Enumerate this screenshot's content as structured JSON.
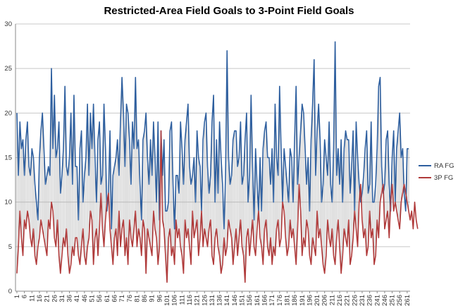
{
  "chart_data": {
    "type": "line",
    "title": "Restricted-Area Field Goals to 3-Point Field Goals",
    "xlabel": "",
    "ylabel": "",
    "ylim": [
      0,
      30
    ],
    "y_ticks": [
      0,
      5,
      10,
      15,
      20,
      25,
      30
    ],
    "x_start": 1,
    "x_tick_step": 5,
    "grid": "horizontal gridlines and vertical high-low lines between series",
    "legend_position": "right",
    "series": [
      {
        "name": "RA FG",
        "color": "#2e5f9f",
        "values": [
          20,
          13,
          19,
          16,
          17,
          13,
          17,
          19,
          14,
          13,
          16,
          15,
          12,
          10,
          8,
          15,
          18,
          20,
          16,
          12,
          13,
          14,
          13,
          25,
          16,
          22,
          15,
          16,
          19,
          11,
          13,
          16,
          23,
          14,
          13,
          15,
          20,
          12,
          22,
          14,
          14,
          8,
          16,
          18,
          10,
          13,
          15,
          21,
          13,
          20,
          16,
          21,
          15,
          10,
          17,
          19,
          12,
          13,
          21,
          16,
          9,
          11,
          18,
          7,
          13,
          14,
          15,
          17,
          13,
          19,
          24,
          20,
          14,
          21,
          20,
          17,
          12,
          19,
          16,
          24,
          16,
          17,
          12,
          8,
          17,
          18,
          20,
          15,
          12,
          17,
          13,
          19,
          15,
          10,
          19,
          8,
          18,
          13,
          17,
          9,
          9,
          10,
          18,
          19,
          12,
          7,
          13,
          13,
          11,
          19,
          16,
          12,
          17,
          19,
          21,
          14,
          12,
          13,
          15,
          10,
          18,
          15,
          14,
          9,
          17,
          19,
          20,
          14,
          11,
          13,
          19,
          22,
          10,
          17,
          11,
          19,
          15,
          12,
          7,
          13,
          27,
          15,
          12,
          13,
          17,
          18,
          18,
          14,
          15,
          19,
          12,
          13,
          17,
          20,
          10,
          13,
          22,
          14,
          8,
          16,
          12,
          9,
          15,
          9,
          16,
          18,
          19,
          15,
          15,
          12,
          16,
          10,
          21,
          15,
          13,
          23,
          16,
          10,
          16,
          14,
          12,
          10,
          16,
          15,
          10,
          17,
          23,
          12,
          15,
          18,
          21,
          20,
          16,
          12,
          15,
          9,
          17,
          21,
          26,
          13,
          18,
          21,
          17,
          10,
          12,
          17,
          15,
          13,
          19,
          12,
          10,
          16,
          28,
          13,
          16,
          12,
          17,
          10,
          16,
          18,
          17,
          17,
          11,
          14,
          18,
          9,
          19,
          15,
          12,
          10,
          11,
          13,
          16,
          18,
          11,
          12,
          19,
          10,
          10,
          12,
          16,
          23,
          24,
          14,
          11,
          12,
          17,
          18,
          12,
          9,
          15,
          18,
          10,
          16,
          18,
          20,
          15,
          16,
          11,
          9,
          16,
          16
        ]
      },
      {
        "name": "3P FG",
        "color": "#b03a3a",
        "values": [
          2,
          5,
          9,
          6,
          4,
          8,
          7,
          9,
          8,
          6,
          5,
          7,
          4,
          3,
          5,
          6,
          8,
          7,
          6,
          5,
          4,
          8,
          7,
          10,
          9,
          6,
          5,
          8,
          4,
          2,
          4,
          6,
          5,
          7,
          4,
          2,
          3,
          5,
          4,
          6,
          6,
          4,
          3,
          5,
          7,
          4,
          3,
          5,
          6,
          9,
          8,
          3,
          6,
          7,
          4,
          7,
          11,
          7,
          5,
          8,
          10,
          11,
          7,
          5,
          3,
          6,
          7,
          4,
          9,
          5,
          7,
          8,
          4,
          6,
          3,
          8,
          6,
          5,
          7,
          9,
          5,
          7,
          6,
          4,
          8,
          7,
          2,
          7,
          6,
          5,
          4,
          9,
          7,
          6,
          3,
          5,
          18,
          8,
          7,
          4,
          1,
          6,
          7,
          4,
          5,
          3,
          8,
          6,
          7,
          5,
          4,
          2,
          8,
          6,
          7,
          5,
          3,
          9,
          6,
          7,
          8,
          4,
          6,
          9,
          5,
          7,
          6,
          5,
          7,
          8,
          4,
          3,
          6,
          7,
          5,
          4,
          2,
          3,
          6,
          4,
          5,
          8,
          7,
          6,
          3,
          5,
          7,
          4,
          6,
          8,
          5,
          4,
          1,
          6,
          7,
          4,
          6,
          8,
          5,
          4,
          7,
          9,
          6,
          5,
          3,
          7,
          8,
          5,
          4,
          6,
          3,
          5,
          4,
          7,
          8,
          5,
          6,
          10,
          9,
          6,
          4,
          5,
          8,
          6,
          7,
          5,
          3,
          7,
          12,
          9,
          4,
          6,
          5,
          8,
          7,
          4,
          3,
          6,
          5,
          4,
          9,
          6,
          7,
          5,
          3,
          2,
          4,
          8,
          6,
          5,
          7,
          4,
          3,
          6,
          8,
          5,
          2,
          4,
          7,
          6,
          5,
          8,
          3,
          4,
          6,
          9,
          7,
          5,
          10,
          12,
          8,
          6,
          7,
          4,
          5,
          9,
          6,
          7,
          3,
          4,
          8,
          6,
          10,
          11,
          12,
          7,
          8,
          9,
          6,
          10,
          12,
          9,
          10,
          9,
          8,
          7,
          10,
          11,
          12,
          11,
          10,
          9,
          8,
          9,
          7,
          10,
          8,
          7
        ]
      }
    ]
  }
}
